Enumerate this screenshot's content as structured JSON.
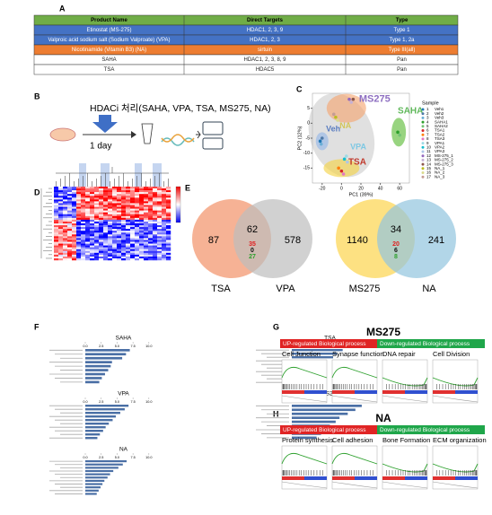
{
  "panel_labels": [
    "A",
    "B",
    "C",
    "D",
    "E",
    "F",
    "G",
    "H"
  ],
  "table": {
    "header": [
      "Product Name",
      "Direct Targets",
      "Type"
    ],
    "rows": [
      [
        "Etinostat (MS-275)",
        "HDAC1, 2, 3, 9",
        "Type 1"
      ],
      [
        "Valproic acid sodium salt (Sodium Valproate) (VPA)",
        "HDAC1, 2, 3",
        "Type 1, 2a"
      ],
      [
        "Nicotinamide (Vitamin B3) (NA)",
        "sirtuin",
        "Type III(all)"
      ],
      [
        "SAHA",
        "HDAC1, 2, 3, 8, 9",
        "Pan"
      ],
      [
        "TSA",
        "HDAC5",
        "Pan"
      ]
    ],
    "header_color": "#70ad47",
    "row_colors": [
      "#4472c4",
      "#4472c4",
      "#ed7d31",
      "#ffffff",
      "#ffffff"
    ]
  },
  "workflow": {
    "title": "HDACi 처리(SAHA, VPA, TSA, MS275, NA)",
    "time": "1 day"
  },
  "pca": {
    "xlabel": "PC1 (39%)",
    "ylabel": "PC2 (12%)",
    "xlim": [
      -30,
      70
    ],
    "ylim": [
      -20,
      10
    ],
    "xticks": [
      -20,
      0,
      20,
      40,
      60
    ],
    "yticks": [
      -15,
      -10,
      -5,
      0,
      5
    ],
    "legend_title": "Sample",
    "samples": [
      {
        "id": "1",
        "name": "Veh1",
        "color": "#1f77b4",
        "x": -22,
        "y": -6
      },
      {
        "id": "2",
        "name": "Veh2",
        "color": "#4e79a7",
        "x": -20,
        "y": -5
      },
      {
        "id": "3",
        "name": "Veh3",
        "color": "#6baed6",
        "x": -21,
        "y": -7
      },
      {
        "id": "4",
        "name": "SAHA1",
        "color": "#2ca02c",
        "x": 58,
        "y": -3
      },
      {
        "id": "5",
        "name": "SAHA2",
        "color": "#74c476",
        "x": 60,
        "y": -4
      },
      {
        "id": "6",
        "name": "TSA1",
        "color": "#d62728",
        "x": 0,
        "y": -16
      },
      {
        "id": "7",
        "name": "TSA2",
        "color": "#ff7f0e",
        "x": -3,
        "y": -15
      },
      {
        "id": "8",
        "name": "TSA3",
        "color": "#e377c2",
        "x": 2,
        "y": -17
      },
      {
        "id": "9",
        "name": "VPA1",
        "color": "#9edae5",
        "x": 5,
        "y": -11
      },
      {
        "id": "10",
        "name": "VPA2",
        "color": "#17becf",
        "x": 3,
        "y": -12
      },
      {
        "id": "11",
        "name": "VPA3",
        "color": "#aec7e8",
        "x": 6,
        "y": -13
      },
      {
        "id": "12",
        "name": "MS-275_1",
        "color": "#9467bd",
        "x": 8,
        "y": 8
      },
      {
        "id": "13",
        "name": "MS-275_2",
        "color": "#c5b0d5",
        "x": 10,
        "y": 7
      },
      {
        "id": "14",
        "name": "MS-275_3",
        "color": "#8c564b",
        "x": 12,
        "y": 8
      },
      {
        "id": "15",
        "name": "NA_1",
        "color": "#bcbd22",
        "x": -6,
        "y": 2
      },
      {
        "id": "16",
        "name": "NA_2",
        "color": "#dbdb8d",
        "x": -4,
        "y": 1
      },
      {
        "id": "17",
        "name": "NA_3",
        "color": "#c49c94",
        "x": -8,
        "y": 3
      }
    ],
    "groups": [
      {
        "name": "MS275",
        "color": "#8e6fc1"
      },
      {
        "name": "NA",
        "color": "#d4c55a"
      },
      {
        "name": "SAHA",
        "color": "#5fb85a"
      },
      {
        "name": "Veh",
        "color": "#5a7dc0"
      },
      {
        "name": "VPA",
        "color": "#7ec8e3"
      },
      {
        "name": "TSA",
        "color": "#c0392b"
      }
    ]
  },
  "venn": [
    {
      "left": "TSA",
      "right": "VPA",
      "left_only": 87,
      "both": 62,
      "right_only": 578,
      "both_detail": [
        35,
        0,
        27
      ],
      "left_color": "#f4a582",
      "right_color": "#bdbdbd"
    },
    {
      "left": "MS275",
      "right": "NA",
      "left_only": 1140,
      "both": 34,
      "right_only": 241,
      "both_detail": [
        20,
        6,
        8
      ],
      "left_color": "#fddc6c",
      "right_color": "#92c5de"
    }
  ],
  "enrichment": {
    "xticks": [
      {
        "value": 0,
        "label": "0.0"
      },
      {
        "value": 2.5,
        "label": "2.5"
      },
      {
        "value": 5,
        "label": "5.0"
      },
      {
        "value": 7.5,
        "label": "7.5"
      },
      {
        "value": 10,
        "label": "10.0"
      }
    ],
    "xlim": [
      0,
      12
    ],
    "color": "#4a6fa5",
    "charts": [
      {
        "title": "SAHA",
        "values": [
          7,
          6.4,
          5.8,
          4.2,
          4,
          3.6,
          3.1,
          2.6,
          2.2
        ]
      },
      {
        "title": "TSA",
        "values": [
          8,
          7.1,
          6.5,
          5,
          4.6,
          4.1,
          3.5,
          3,
          2.4,
          2
        ]
      },
      {
        "title": "VPA",
        "values": [
          6.8,
          6.2,
          5.5,
          4.8,
          4.3,
          3.7,
          3.2,
          2.8,
          2.3,
          1.9
        ]
      },
      {
        "title": "MS275",
        "values": [
          11,
          10,
          8.8,
          7.5,
          6.9,
          6,
          5.2,
          4.6,
          3.9
        ]
      },
      {
        "title": "NA",
        "values": [
          6.5,
          5.9,
          5.2,
          4.4,
          3.9,
          3.5,
          3,
          2.7,
          2.4,
          2.1,
          1.8
        ]
      }
    ]
  },
  "gsea": [
    {
      "title": "MS275",
      "up": "UP-regulated Biological process",
      "down": "Down-regulated Biological process",
      "terms": [
        "Cell Junction",
        "Synapse function",
        "DNA repair",
        "Cell Division"
      ]
    },
    {
      "title": "NA",
      "up": "UP-regulated Biological process",
      "down": "Down-regulated Biological process",
      "terms": [
        "Protein synthesis",
        "Cell adhesion",
        "Bone Formation",
        "ECM organization"
      ]
    }
  ]
}
